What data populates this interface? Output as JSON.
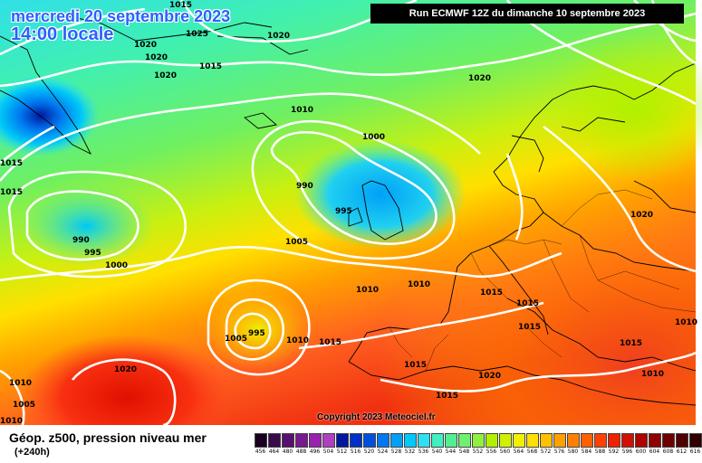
{
  "map": {
    "date_line": "mercredi 20 septembre 2023",
    "time_line": "14:00 locale",
    "run_info": "Run ECMWF 12Z du dimanche 10 septembre 2023",
    "copyright": "Copyright 2023 Meteociel.fr",
    "product": "Géop. z500, pression niveau mer",
    "lead_time": "(+240h)",
    "isobar_labels": [
      "1015",
      "1020",
      "1025",
      "1020",
      "1020",
      "1015",
      "1020",
      "1020",
      "1010",
      "1000",
      "990",
      "995",
      "990",
      "995",
      "1000",
      "1005",
      "1015",
      "1015",
      "1020",
      "1010",
      "1010",
      "1015",
      "1015",
      "1015",
      "995",
      "1005",
      "1010",
      "1015",
      "1010",
      "1015",
      "1015",
      "1010",
      "1020",
      "1010",
      "1005",
      "1010",
      "1020",
      "1015"
    ]
  },
  "legend": {
    "values": [
      "456",
      "464",
      "480",
      "488",
      "496",
      "504",
      "512",
      "516",
      "520",
      "524",
      "528",
      "532",
      "536",
      "540",
      "544",
      "548",
      "552",
      "556",
      "560",
      "564",
      "568",
      "572",
      "576",
      "580",
      "584",
      "588",
      "592",
      "596",
      "600",
      "604",
      "608",
      "612",
      "616"
    ],
    "colors": [
      "#1a0020",
      "#3a0a4a",
      "#5a1070",
      "#7a1890",
      "#9a20b0",
      "#b040c0",
      "#0018a0",
      "#0030c8",
      "#0050e0",
      "#0078f0",
      "#00a0f8",
      "#00c8f8",
      "#30e0f0",
      "#40f0c0",
      "#50f090",
      "#70f070",
      "#90f040",
      "#b0f000",
      "#d0f000",
      "#f0f000",
      "#ffe000",
      "#ffc000",
      "#ffa000",
      "#ff8000",
      "#ff6000",
      "#ff4000",
      "#f02000",
      "#d01000",
      "#b00000",
      "#900000",
      "#700000",
      "#500000",
      "#300000"
    ]
  }
}
